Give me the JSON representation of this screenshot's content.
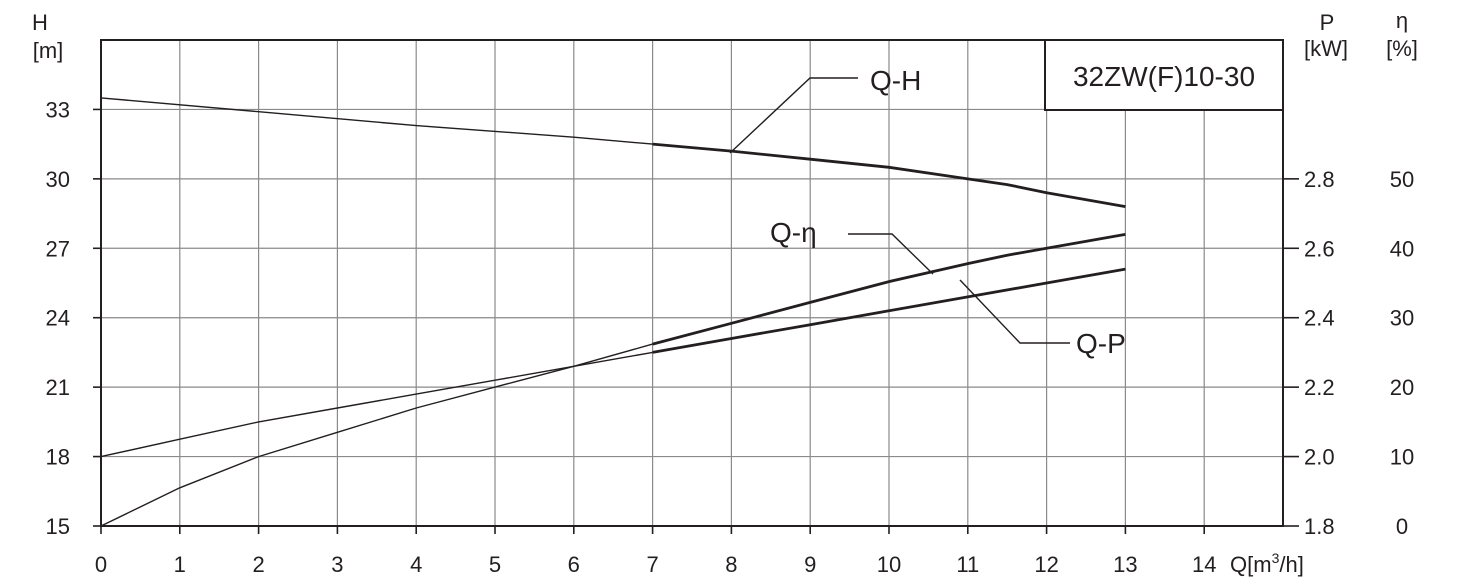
{
  "chart_data": {
    "type": "line",
    "model_label": "32ZW(F)10-30",
    "x": {
      "label_prefix": "Q[m",
      "label_sup": "3",
      "label_suffix": "/h]",
      "min": 0,
      "max": 15,
      "ticks": [
        "0",
        "1",
        "2",
        "3",
        "4",
        "5",
        "6",
        "7",
        "8",
        "9",
        "10",
        "11",
        "12",
        "13",
        "14"
      ]
    },
    "y_left": {
      "label_top": "H",
      "label_bottom": "[m]",
      "min": 15,
      "max": 36,
      "ticks": [
        15,
        18,
        21,
        24,
        27,
        30,
        33
      ],
      "tick_labels": [
        "15",
        "18",
        "21",
        "24",
        "27",
        "30",
        "33"
      ]
    },
    "y_p": {
      "label_top": "P",
      "label_bottom": "[kW]",
      "ticks": [
        1.8,
        2.0,
        2.2,
        2.4,
        2.6,
        2.8
      ],
      "tick_labels": [
        "1.8",
        "2.0",
        "2.2",
        "2.4",
        "2.6",
        "2.8"
      ]
    },
    "y_eta": {
      "label_top": "η",
      "label_bottom": "[%]",
      "ticks": [
        0,
        10,
        20,
        30,
        40,
        50
      ],
      "tick_labels": [
        "0",
        "10",
        "20",
        "30",
        "40",
        "50"
      ]
    },
    "grid": true,
    "series": [
      {
        "name": "Q-H",
        "axis": "H",
        "x": [
          0,
          2,
          4,
          6,
          7,
          8,
          9,
          10,
          11,
          11.5,
          12,
          13
        ],
        "values": [
          33.5,
          32.9,
          32.3,
          31.8,
          31.5,
          31.2,
          30.85,
          30.5,
          30.0,
          29.75,
          29.4,
          28.8
        ]
      },
      {
        "name": "Q-P",
        "axis": "P",
        "x": [
          0,
          1,
          2,
          3,
          4,
          5,
          6,
          7,
          8,
          9,
          10,
          11,
          12,
          13
        ],
        "values": [
          2.0,
          2.05,
          2.1,
          2.14,
          2.18,
          2.22,
          2.26,
          2.3,
          2.34,
          2.38,
          2.42,
          2.46,
          2.5,
          2.54
        ]
      },
      {
        "name": "Q-η",
        "axis": "eta",
        "x": [
          0,
          1,
          2,
          3,
          4,
          5,
          6,
          7,
          8,
          9,
          10,
          11,
          11.5,
          12,
          13
        ],
        "values": [
          0,
          5.5,
          10,
          13.5,
          17,
          20,
          23,
          26.2,
          29.2,
          32.2,
          35.2,
          37.8,
          39,
          40,
          42
        ]
      }
    ]
  }
}
